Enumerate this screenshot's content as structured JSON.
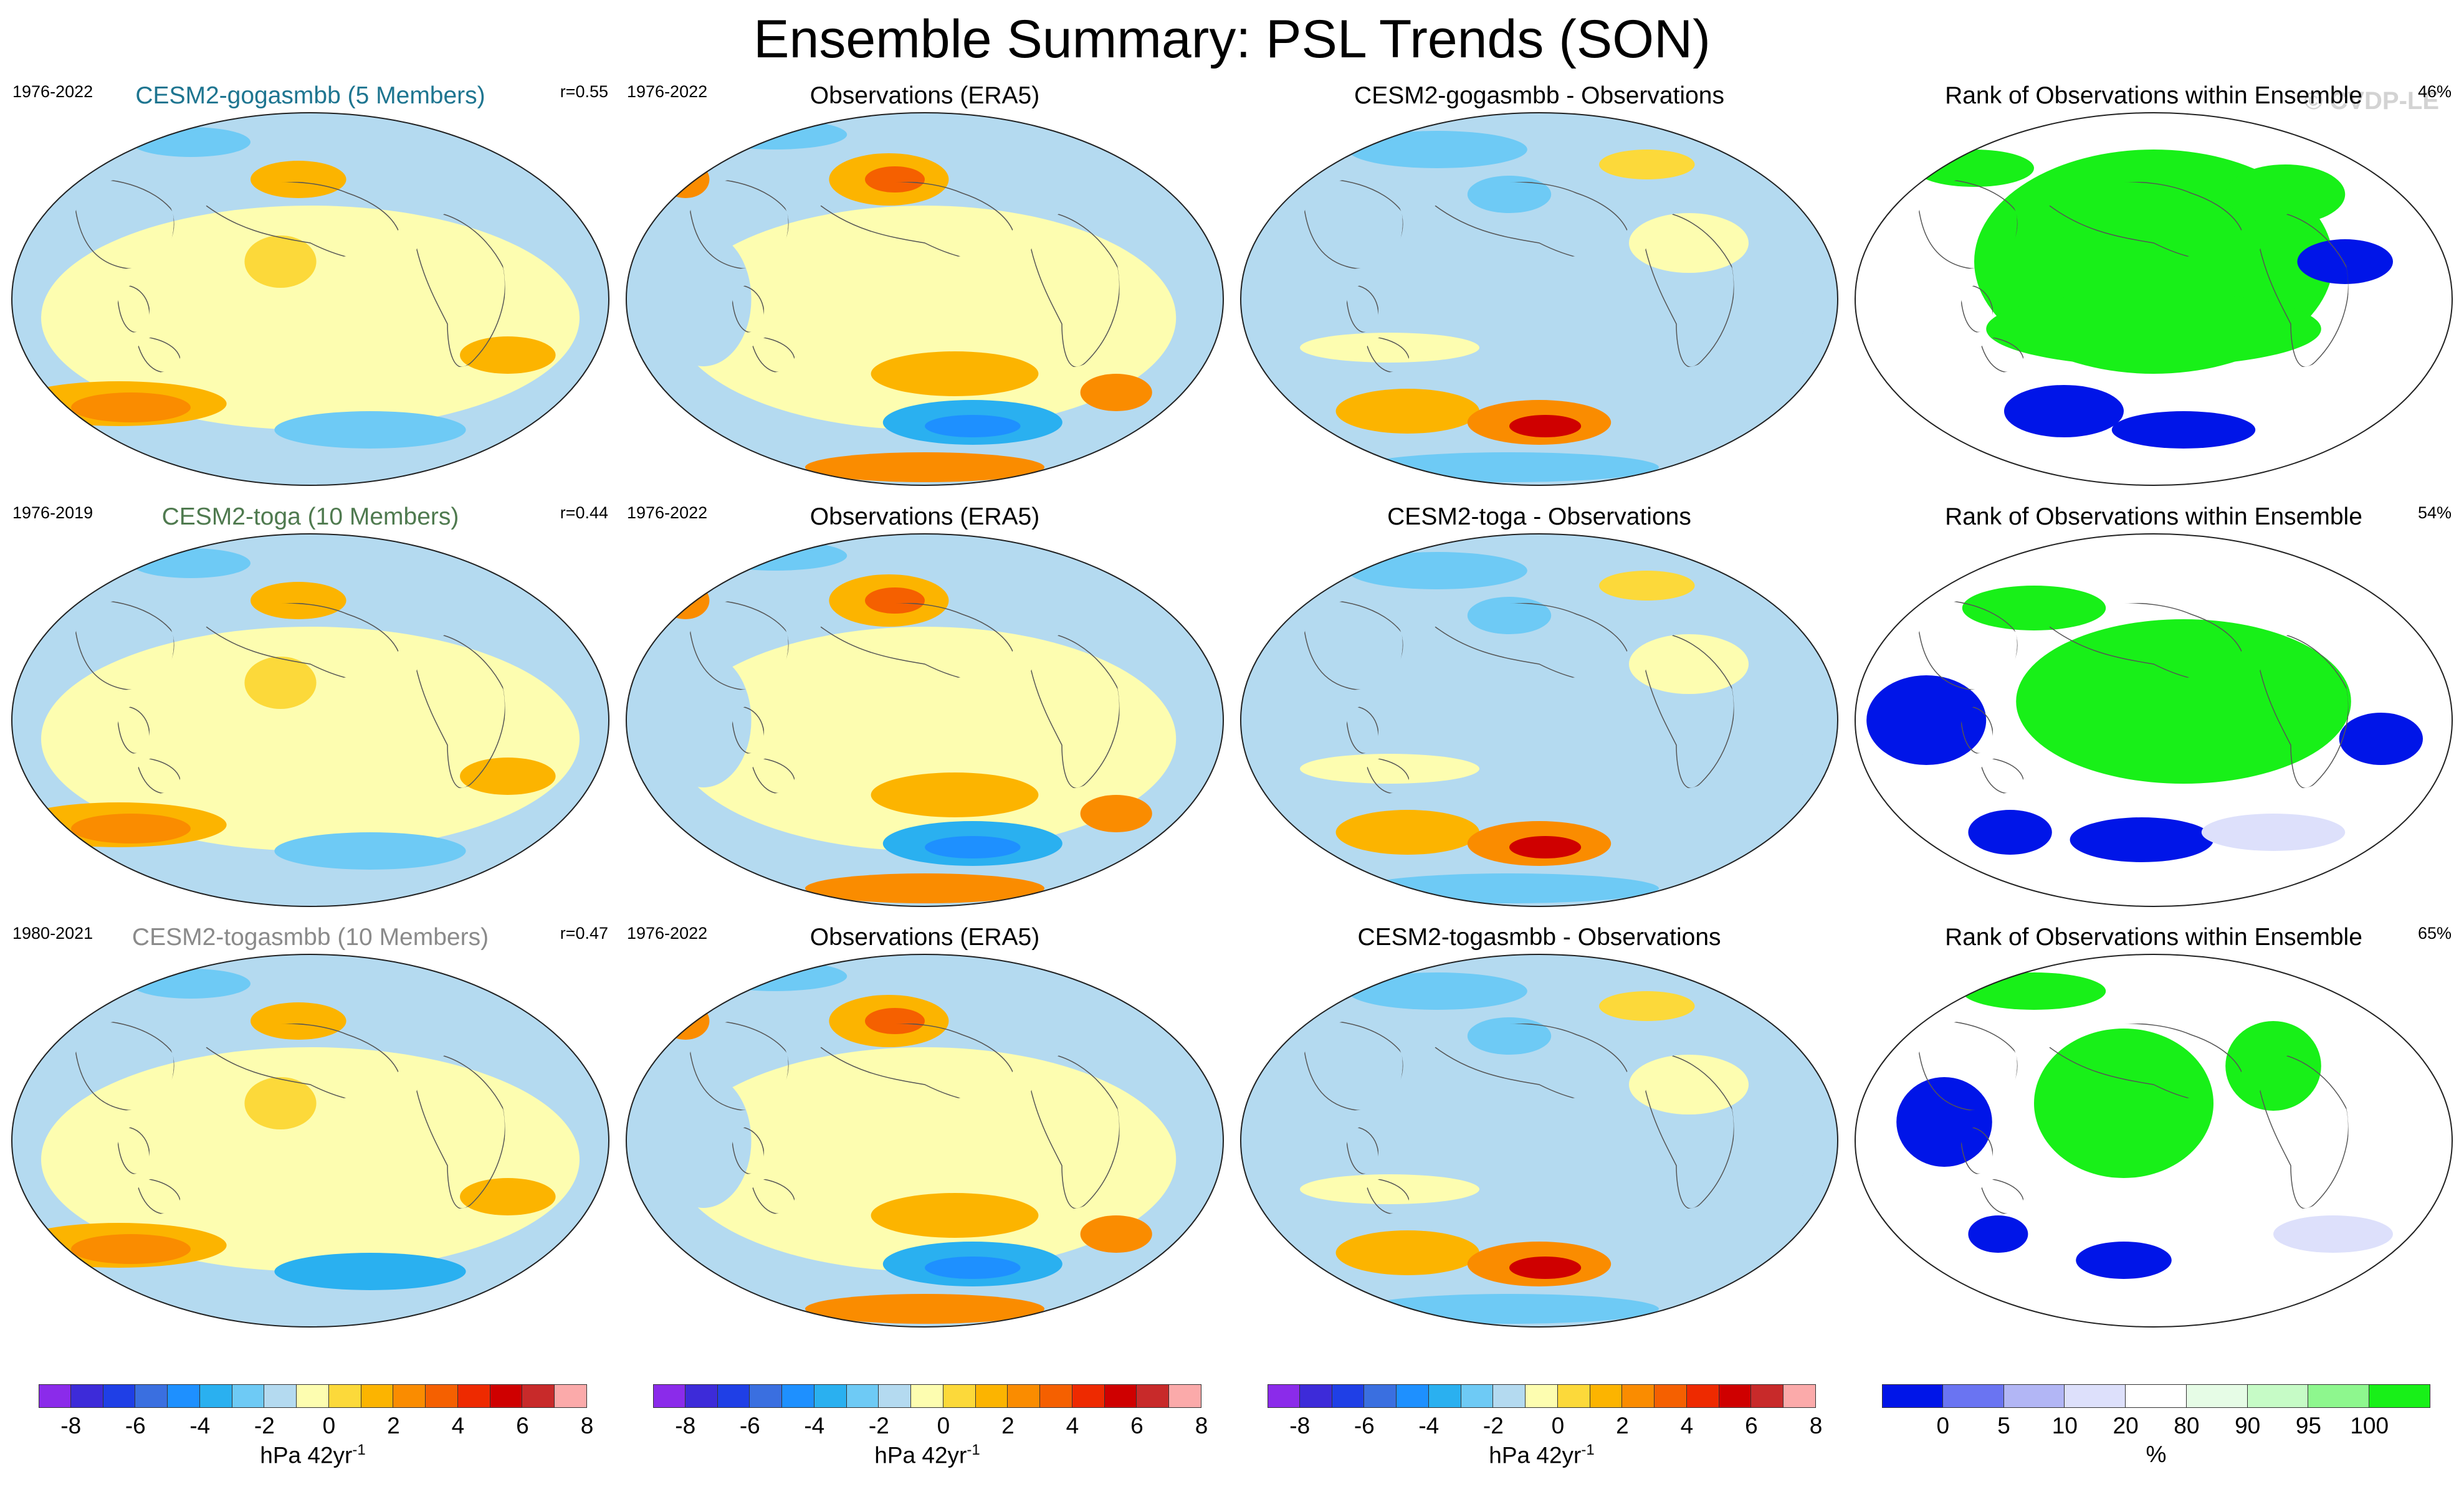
{
  "title": "Ensemble Summary: PSL Trends (SON)",
  "watermark": "© CVDP-LE",
  "colors": {
    "psl_levels": [
      "#8b2bea",
      "#3d2bd9",
      "#1f3fe6",
      "#3a6fe0",
      "#1e90ff",
      "#2ab0f0",
      "#6ecaf5",
      "#b4daf0",
      "#fdfdb0",
      "#fcd93a",
      "#fcb400",
      "#fa8c00",
      "#f56000",
      "#ee2a00",
      "#cf0000",
      "#c82a2a",
      "#fbaaaa"
    ],
    "rank_levels": [
      "#0015e8",
      "#6a74f2",
      "#b2b6f5",
      "#dde0fb",
      "#ffffff",
      "#e6fce6",
      "#c6fbc6",
      "#8ef78e",
      "#18f018"
    ],
    "model_title_colors": [
      "#1e7590",
      "#4f7a4f",
      "#8a8a8a"
    ]
  },
  "rows": [
    {
      "model": {
        "title": "CESM2-gogasmbb (5 Members)",
        "years": "1976-2022",
        "r": "r=0.55"
      },
      "obs": {
        "title": "Observations (ERA5)",
        "years": "1976-2022"
      },
      "diff": {
        "title": "CESM2-gogasmbb - Observations"
      },
      "rank": {
        "title": "Rank of Observations within Ensemble",
        "pct": "46%"
      }
    },
    {
      "model": {
        "title": "CESM2-toga (10 Members)",
        "years": "1976-2019",
        "r": "r=0.44"
      },
      "obs": {
        "title": "Observations (ERA5)",
        "years": "1976-2022"
      },
      "diff": {
        "title": "CESM2-toga - Observations"
      },
      "rank": {
        "title": "Rank of Observations within Ensemble",
        "pct": "54%"
      }
    },
    {
      "model": {
        "title": "CESM2-togasmbb (10 Members)",
        "years": "1980-2021",
        "r": "r=0.47"
      },
      "obs": {
        "title": "Observations (ERA5)",
        "years": "1976-2022"
      },
      "diff": {
        "title": "CESM2-togasmbb - Observations"
      },
      "rank": {
        "title": "Rank of Observations within Ensemble",
        "pct": "65%"
      }
    }
  ],
  "colorbars": {
    "psl": {
      "ticks": [
        "-8",
        "-6",
        "-4",
        "-2",
        "0",
        "2",
        "4",
        "6",
        "8"
      ],
      "unit": "hPa 42yr",
      "unit_sup": "-1"
    },
    "rank": {
      "ticks": [
        "0",
        "5",
        "10",
        "20",
        "80",
        "90",
        "95",
        "100"
      ],
      "unit": "%"
    }
  },
  "chart_data": {
    "type": "heatmap",
    "title": "Ensemble Summary: PSL Trends (SON)",
    "variable": "PSL trends",
    "season": "SON",
    "projection": "Robinson global maps",
    "psl_contour_levels": [
      -8,
      -7,
      -6,
      -5,
      -4,
      -3,
      -2,
      -1,
      0,
      1,
      2,
      3,
      4,
      5,
      6,
      7,
      8
    ],
    "rank_levels": [
      0,
      5,
      10,
      20,
      80,
      90,
      95,
      100
    ],
    "panels": [
      {
        "row": 1,
        "column": "model",
        "title": "CESM2-gogasmbb (5 Members)",
        "years": "1976-2022",
        "pattern_correlation": 0.55
      },
      {
        "row": 1,
        "column": "observations",
        "title": "Observations (ERA5)",
        "years": "1976-2022"
      },
      {
        "row": 1,
        "column": "difference",
        "title": "CESM2-gogasmbb - Observations"
      },
      {
        "row": 1,
        "column": "rank",
        "title": "Rank of Observations within Ensemble",
        "percent": 46
      },
      {
        "row": 2,
        "column": "model",
        "title": "CESM2-toga (10 Members)",
        "years": "1976-2019",
        "pattern_correlation": 0.44
      },
      {
        "row": 2,
        "column": "observations",
        "title": "Observations (ERA5)",
        "years": "1976-2022"
      },
      {
        "row": 2,
        "column": "difference",
        "title": "CESM2-toga - Observations"
      },
      {
        "row": 2,
        "column": "rank",
        "title": "Rank of Observations within Ensemble",
        "percent": 54
      },
      {
        "row": 3,
        "column": "model",
        "title": "CESM2-togasmbb (10 Members)",
        "years": "1980-2021",
        "pattern_correlation": 0.47
      },
      {
        "row": 3,
        "column": "observations",
        "title": "Observations (ERA5)",
        "years": "1976-2022"
      },
      {
        "row": 3,
        "column": "difference",
        "title": "CESM2-togasmbb - Observations"
      },
      {
        "row": 3,
        "column": "rank",
        "title": "Rank of Observations within Ensemble",
        "percent": 65
      }
    ]
  }
}
